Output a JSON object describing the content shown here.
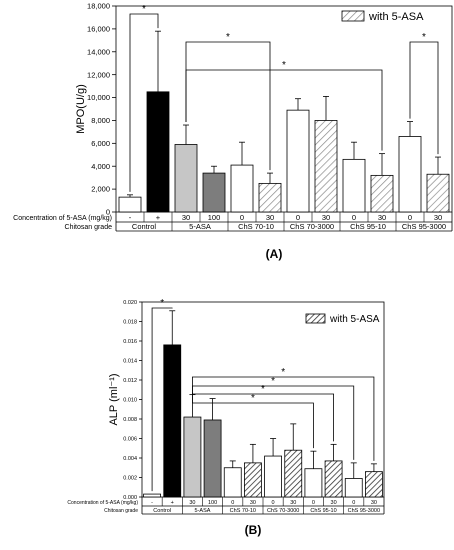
{
  "chart_data": [
    {
      "type": "bar",
      "panel_label": "(A)",
      "ylabel": "MPO(U/g)",
      "ylim": [
        0,
        18000
      ],
      "yticks": [
        0,
        2000,
        4000,
        6000,
        8000,
        10000,
        12000,
        14000,
        16000,
        18000
      ],
      "legend": {
        "label": "with 5-ASA",
        "position": "top-right"
      },
      "row1_title": "Concentration of 5-ASA (mg/kg)",
      "row2_title": "Chitosan grade",
      "bars": [
        {
          "row1": "-",
          "value": 1300,
          "error": 200,
          "style": "open"
        },
        {
          "row1": "+",
          "value": 10500,
          "error": 5300,
          "style": "solid-black"
        },
        {
          "row1": "30",
          "value": 5900,
          "error": 1700,
          "style": "light-gray"
        },
        {
          "row1": "100",
          "value": 3400,
          "error": 600,
          "style": "dark-gray"
        },
        {
          "row1": "0",
          "value": 4100,
          "error": 2000,
          "style": "open"
        },
        {
          "row1": "30",
          "value": 2500,
          "error": 900,
          "style": "hatched"
        },
        {
          "row1": "0",
          "value": 8900,
          "error": 1000,
          "style": "open"
        },
        {
          "row1": "30",
          "value": 8000,
          "error": 2100,
          "style": "hatched"
        },
        {
          "row1": "0",
          "value": 4600,
          "error": 1500,
          "style": "open"
        },
        {
          "row1": "30",
          "value": 3200,
          "error": 1900,
          "style": "hatched"
        },
        {
          "row1": "0",
          "value": 6600,
          "error": 1300,
          "style": "open"
        },
        {
          "row1": "30",
          "value": 3300,
          "error": 1500,
          "style": "hatched"
        }
      ],
      "groups": [
        {
          "label": "Control",
          "span": [
            0,
            1
          ]
        },
        {
          "label": "5-ASA",
          "span": [
            2,
            3
          ]
        },
        {
          "label": "ChS 70-10",
          "span": [
            4,
            5
          ]
        },
        {
          "label": "ChS 70-3000",
          "span": [
            6,
            7
          ]
        },
        {
          "label": "ChS 95-10",
          "span": [
            8,
            9
          ]
        },
        {
          "label": "ChS 95-3000",
          "span": [
            10,
            11
          ]
        }
      ],
      "significance": [
        {
          "from": 0,
          "to": 1,
          "label": "*"
        },
        {
          "from": 2,
          "to": 5,
          "label": "*"
        },
        {
          "from": 2,
          "to": 9,
          "label": "*"
        },
        {
          "from": 10,
          "to": 11,
          "label": "*"
        }
      ]
    },
    {
      "type": "bar",
      "panel_label": "(B)",
      "ylabel": "ALP (ml⁻¹)",
      "ylim": [
        0,
        0.02
      ],
      "yticks": [
        0,
        0.002,
        0.004,
        0.006,
        0.008,
        0.01,
        0.012,
        0.014,
        0.016,
        0.018,
        0.02
      ],
      "ytick_labels": [
        "0.000",
        "0.002",
        "0.004",
        "0.006",
        "0.008",
        "0.010",
        "0.012",
        "0.014",
        "0.016",
        "0.018",
        "0.020"
      ],
      "legend": {
        "label": "with 5-ASA",
        "position": "top-right"
      },
      "row1_title": "Concentration of 5-ASA (mg/kg)",
      "row2_title": "Chitosan grade",
      "bars": [
        {
          "row1": "-",
          "value": 0.0003,
          "error": 0,
          "style": "open"
        },
        {
          "row1": "+",
          "value": 0.0156,
          "error": 0.0035,
          "style": "solid-black"
        },
        {
          "row1": "30",
          "value": 0.0082,
          "error": 0.0023,
          "style": "light-gray"
        },
        {
          "row1": "100",
          "value": 0.0079,
          "error": 0.0022,
          "style": "dark-gray"
        },
        {
          "row1": "0",
          "value": 0.003,
          "error": 0.0007,
          "style": "open"
        },
        {
          "row1": "30",
          "value": 0.0035,
          "error": 0.0019,
          "style": "hatched"
        },
        {
          "row1": "0",
          "value": 0.0042,
          "error": 0.0018,
          "style": "open"
        },
        {
          "row1": "30",
          "value": 0.0048,
          "error": 0.0027,
          "style": "hatched"
        },
        {
          "row1": "0",
          "value": 0.0029,
          "error": 0.0018,
          "style": "open"
        },
        {
          "row1": "30",
          "value": 0.0037,
          "error": 0.0017,
          "style": "hatched"
        },
        {
          "row1": "0",
          "value": 0.0019,
          "error": 0.0016,
          "style": "open"
        },
        {
          "row1": "30",
          "value": 0.0026,
          "error": 0.0008,
          "style": "hatched"
        }
      ],
      "groups": [
        {
          "label": "Control",
          "span": [
            0,
            1
          ]
        },
        {
          "label": "5-ASA",
          "span": [
            2,
            3
          ]
        },
        {
          "label": "ChS 70-10",
          "span": [
            4,
            5
          ]
        },
        {
          "label": "ChS 70-3000",
          "span": [
            6,
            7
          ]
        },
        {
          "label": "ChS 95-10",
          "span": [
            8,
            9
          ]
        },
        {
          "label": "ChS 95-3000",
          "span": [
            10,
            11
          ]
        }
      ],
      "significance": [
        {
          "from": 0,
          "to": 1,
          "label": "*"
        },
        {
          "from": 2,
          "to": 11,
          "label": "*"
        },
        {
          "from": 2,
          "to": 10,
          "label": "*"
        },
        {
          "from": 2,
          "to": 9,
          "label": "*"
        },
        {
          "from": 2,
          "to": 8,
          "label": "*"
        }
      ]
    }
  ]
}
